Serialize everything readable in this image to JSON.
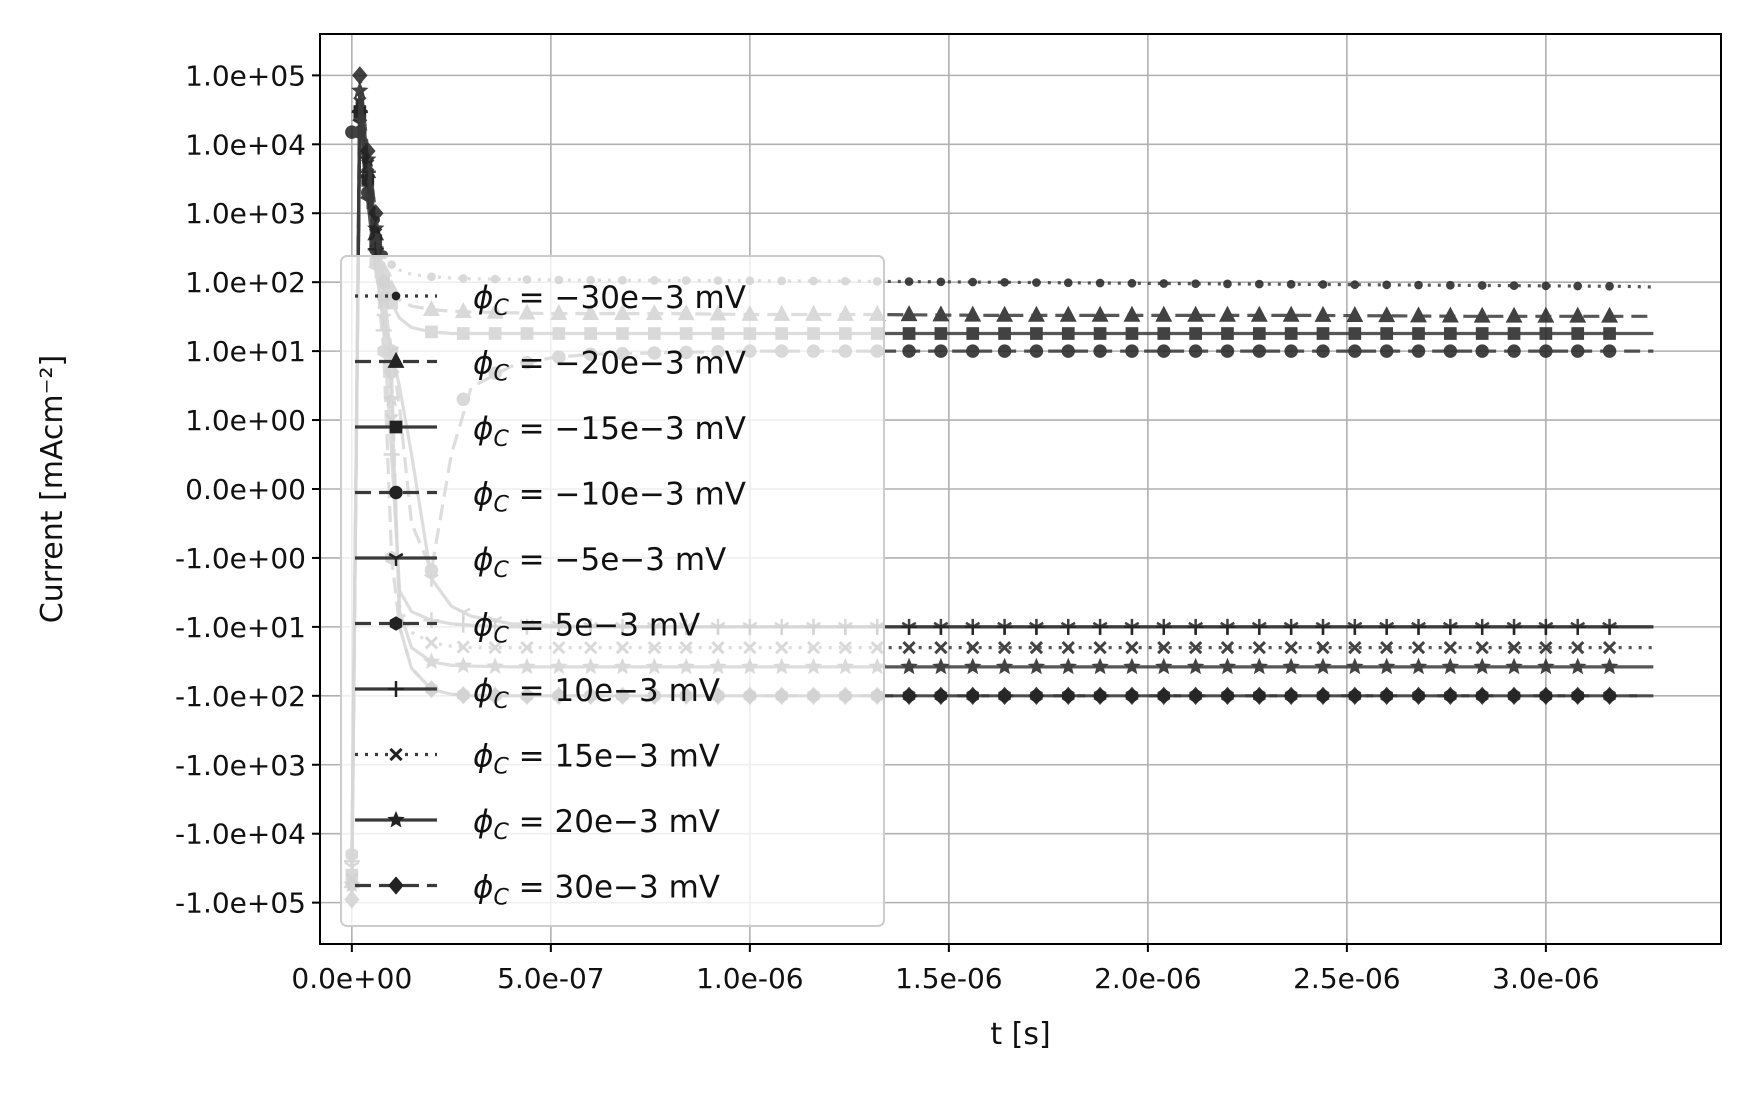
{
  "chart_data": {
    "type": "line",
    "xlabel": "t [s]",
    "ylabel": "Current [mAcm⁻²]",
    "xlim": [
      -8e-08,
      3.44e-06
    ],
    "x_ticks": [
      0,
      5e-07,
      1e-06,
      1.5e-06,
      2e-06,
      2.5e-06,
      3e-06
    ],
    "x_tick_labels": [
      "0.0e+00",
      "5.0e-07",
      "1.0e-06",
      "1.5e-06",
      "2.0e-06",
      "2.5e-06",
      "3.0e-06"
    ],
    "y_scale": "symlog",
    "y_ticks": [
      100000,
      10000,
      1000,
      100,
      10,
      1,
      0,
      -1,
      -10,
      -100,
      -1000,
      -10000,
      -100000
    ],
    "y_tick_labels": [
      "1.0e+05",
      "1.0e+04",
      "1.0e+03",
      "1.0e+02",
      "1.0e+01",
      "1.0e+00",
      "0.0e+00",
      "-1.0e+00",
      "-1.0e+01",
      "-1.0e+02",
      "-1.0e+03",
      "-1.0e+04",
      "-1.0e+05"
    ],
    "grid": true,
    "legend_position": "lower-left",
    "x": [
      0,
      2e-08,
      4e-08,
      6e-08,
      8e-08,
      1e-07,
      1.2e-07,
      1.5e-07,
      2e-07,
      2.5e-07,
      3e-07,
      4e-07,
      5e-07,
      6e-07,
      8e-07,
      1e-06,
      1.3e-06,
      1.6e-06,
      2e-06,
      2.4e-06,
      2.8e-06,
      3.2e-06,
      3.27e-06
    ],
    "series": [
      {
        "name": "ϕC = −30e−3 mV",
        "marker": "dot",
        "dash": "dotted",
        "values": [
          -60000,
          40000,
          5000,
          800,
          250,
          180,
          150,
          130,
          120,
          115,
          112,
          110,
          108,
          107,
          106,
          105,
          103,
          100,
          96,
          93,
          90,
          87,
          85
        ]
      },
      {
        "name": "ϕC = −20e−3 mV",
        "marker": "triangle",
        "dash": "dashed",
        "values": [
          -50000,
          35000,
          4000,
          500,
          150,
          80,
          55,
          45,
          40,
          38,
          37,
          36,
          35,
          35,
          35,
          34,
          34,
          33,
          33,
          33,
          32,
          32,
          32
        ]
      },
      {
        "name": "ϕC = −15e−3 mV",
        "marker": "square",
        "dash": "solid",
        "values": [
          -40000,
          30000,
          3000,
          400,
          100,
          50,
          30,
          22,
          19,
          18,
          18,
          18,
          18,
          18,
          18,
          18,
          18,
          18,
          18,
          18,
          18,
          18,
          18
        ]
      },
      {
        "name": "ϕC = −10e−3 mV",
        "marker": "circle",
        "dash": "dashed",
        "values": [
          15000,
          15000,
          2000,
          300,
          60,
          10,
          1.5,
          -0.5,
          -1.5,
          0.5,
          3,
          6,
          8,
          9,
          9.5,
          10,
          10,
          10,
          10,
          10,
          10,
          10,
          10
        ]
      },
      {
        "name": "ϕC = −5e−3 mV",
        "marker": "tri_down",
        "dash": "solid",
        "values": [
          -30000,
          20000,
          1500,
          150,
          30,
          10,
          3,
          0.5,
          -2,
          -5,
          -7,
          -9,
          -9.5,
          -10,
          -10,
          -10,
          -10,
          -10,
          -10,
          -10,
          -10,
          -10,
          -10
        ]
      },
      {
        "name": "ϕC = 5e−3 mV",
        "marker": "hexagon",
        "dash": "dashed",
        "values": [
          -20000,
          25000,
          3000,
          200,
          10,
          -1,
          -10,
          -40,
          -80,
          -95,
          -98,
          -100,
          -100,
          -100,
          -100,
          -100,
          -100,
          -100,
          -100,
          -100,
          -100,
          -100,
          -100
        ]
      },
      {
        "name": "ϕC = 10e−3 mV",
        "marker": "plus",
        "dash": "solid",
        "values": [
          -25000,
          30000,
          4000,
          300,
          20,
          0.5,
          -3,
          -6,
          -8,
          -9,
          -9.5,
          -10,
          -10,
          -10,
          -10,
          -10,
          -10,
          -10,
          -10,
          -10,
          -10,
          -10,
          -10
        ]
      },
      {
        "name": "ϕC = 15e−3 mV",
        "marker": "x",
        "dash": "dotted",
        "values": [
          -45000,
          40000,
          5000,
          500,
          50,
          1,
          -5,
          -12,
          -17,
          -19,
          -20,
          -20,
          -20,
          -20,
          -20,
          -20,
          -20,
          -20,
          -20,
          -20,
          -20,
          -20,
          -20
        ]
      },
      {
        "name": "ϕC = 20e−3 mV",
        "marker": "star",
        "dash": "solid",
        "values": [
          -55000,
          60000,
          6000,
          600,
          60,
          2,
          -6,
          -20,
          -32,
          -36,
          -37,
          -38,
          -38,
          -38,
          -38,
          -38,
          -38,
          -38,
          -38,
          -38,
          -38,
          -38,
          -38
        ]
      },
      {
        "name": "ϕC = 30e−3 mV",
        "marker": "diamond",
        "dash": "dashed",
        "values": [
          -90000,
          100000,
          8000,
          1000,
          100,
          5,
          -10,
          -40,
          -80,
          -95,
          -100,
          -100,
          -100,
          -100,
          -100,
          -100,
          -100,
          -100,
          -100,
          -100,
          -100,
          -100,
          -100
        ]
      }
    ]
  },
  "legend": {
    "entries": [
      {
        "prefix": "ϕ",
        "sub": "C",
        "text": " = −30e−3 mV"
      },
      {
        "prefix": "ϕ",
        "sub": "C",
        "text": " = −20e−3 mV"
      },
      {
        "prefix": "ϕ",
        "sub": "C",
        "text": " = −15e−3 mV"
      },
      {
        "prefix": "ϕ",
        "sub": "C",
        "text": " = −10e−3 mV"
      },
      {
        "prefix": "ϕ",
        "sub": "C",
        "text": " = −5e−3 mV"
      },
      {
        "prefix": "ϕ",
        "sub": "C",
        "text": " = 5e−3 mV"
      },
      {
        "prefix": "ϕ",
        "sub": "C",
        "text": " = 10e−3 mV"
      },
      {
        "prefix": "ϕ",
        "sub": "C",
        "text": " = 15e−3 mV"
      },
      {
        "prefix": "ϕ",
        "sub": "C",
        "text": " = 20e−3 mV"
      },
      {
        "prefix": "ϕ",
        "sub": "C",
        "text": " = 30e−3 mV"
      }
    ]
  },
  "colors": {
    "line": "#3a3a3a",
    "marker": "#222222",
    "grid": "#b0b0b0",
    "axes": "#000000"
  }
}
